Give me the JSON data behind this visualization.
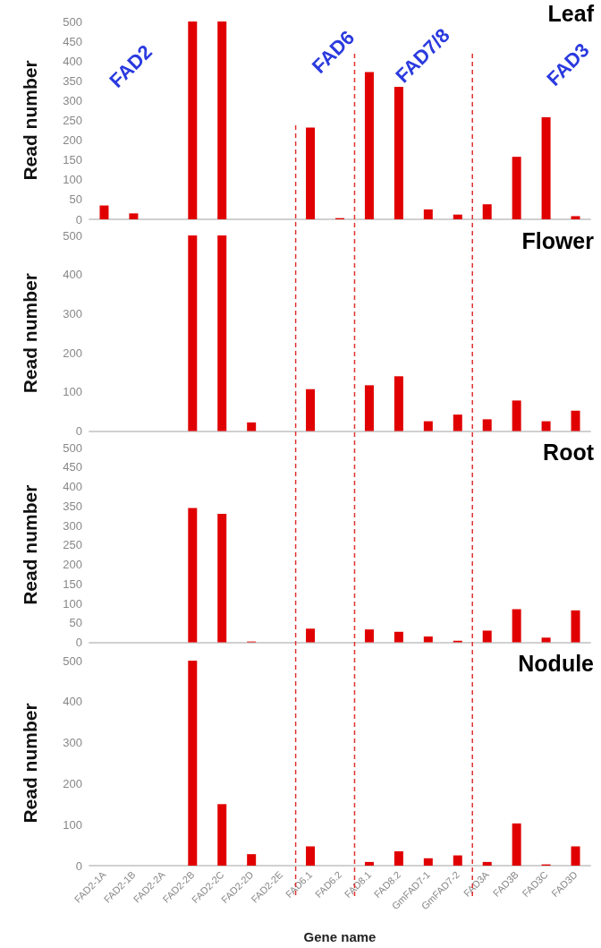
{
  "chart_data": [
    {
      "type": "bar",
      "title": "Leaf",
      "ylabel": "Read number",
      "categories": [
        null,
        null,
        null,
        null,
        null,
        null,
        null,
        null,
        null,
        null,
        null,
        null,
        null,
        null,
        null,
        null,
        null
      ],
      "series": [
        {
          "color": "#e00000",
          "values": [
            35,
            15,
            0,
            500,
            500,
            0,
            0,
            232,
            3,
            372,
            335,
            25,
            12,
            38,
            158,
            258,
            8
          ]
        }
      ],
      "ylim": [
        0,
        500
      ],
      "yticks": [
        0,
        50,
        100,
        150,
        200,
        250,
        300,
        350,
        400,
        450,
        500
      ],
      "grid": false,
      "tick_labels": "y",
      "annotations": [
        "FAD2",
        "FAD6",
        "FAD7/8",
        "FAD3"
      ]
    },
    {
      "type": "bar",
      "title": "Flower",
      "ylabel": "Read number",
      "categories": [
        null,
        null,
        null,
        null,
        null,
        null,
        null,
        null,
        null,
        null,
        null,
        null,
        null,
        null,
        null,
        null,
        null
      ],
      "series": [
        {
          "color": "#e00000",
          "values": [
            0,
            0,
            0,
            500,
            500,
            22,
            0,
            107,
            0,
            117,
            140,
            25,
            42,
            30,
            78,
            25,
            52
          ]
        }
      ],
      "ylim": [
        0,
        500
      ],
      "yticks": [
        0,
        100,
        200,
        300,
        400,
        500
      ],
      "grid": false,
      "tick_labels": "y"
    },
    {
      "type": "bar",
      "title": "Root",
      "ylabel": "Read number",
      "categories": [
        null,
        null,
        null,
        null,
        null,
        null,
        null,
        null,
        null,
        null,
        null,
        null,
        null,
        null,
        null,
        null,
        null
      ],
      "series": [
        {
          "color": "#e00000",
          "values": [
            0,
            0,
            0,
            345,
            330,
            2,
            0,
            35,
            0,
            33,
            27,
            15,
            4,
            30,
            85,
            12,
            82
          ]
        }
      ],
      "ylim": [
        0,
        500
      ],
      "yticks": [
        0,
        50,
        100,
        150,
        200,
        250,
        300,
        350,
        400,
        450,
        500
      ],
      "grid": false,
      "tick_labels": "y"
    },
    {
      "type": "bar",
      "title": "Nodule",
      "ylabel": "Read number",
      "xlabel": "Gene name",
      "categories": [
        "FAD2-1A",
        "FAD2-1B",
        "FAD2-2A",
        "FAD2-2B",
        "FAD2-2C",
        "FAD2-2D",
        "FAD2-2E",
        "FAD6.1",
        "FAD6.2",
        "FAD8.1",
        "FAD8.2",
        "GmFAD7-1",
        "GmFAD7-2",
        "FAD3A",
        "FAD3B",
        "FAD3C",
        "FAD3D"
      ],
      "series": [
        {
          "color": "#e00000",
          "values": [
            0,
            0,
            0,
            500,
            150,
            28,
            0,
            47,
            0,
            9,
            35,
            18,
            25,
            9,
            103,
            3,
            47
          ]
        }
      ],
      "ylim": [
        0,
        500
      ],
      "yticks": [
        0,
        100,
        200,
        300,
        400,
        500
      ],
      "grid": false
    }
  ]
}
